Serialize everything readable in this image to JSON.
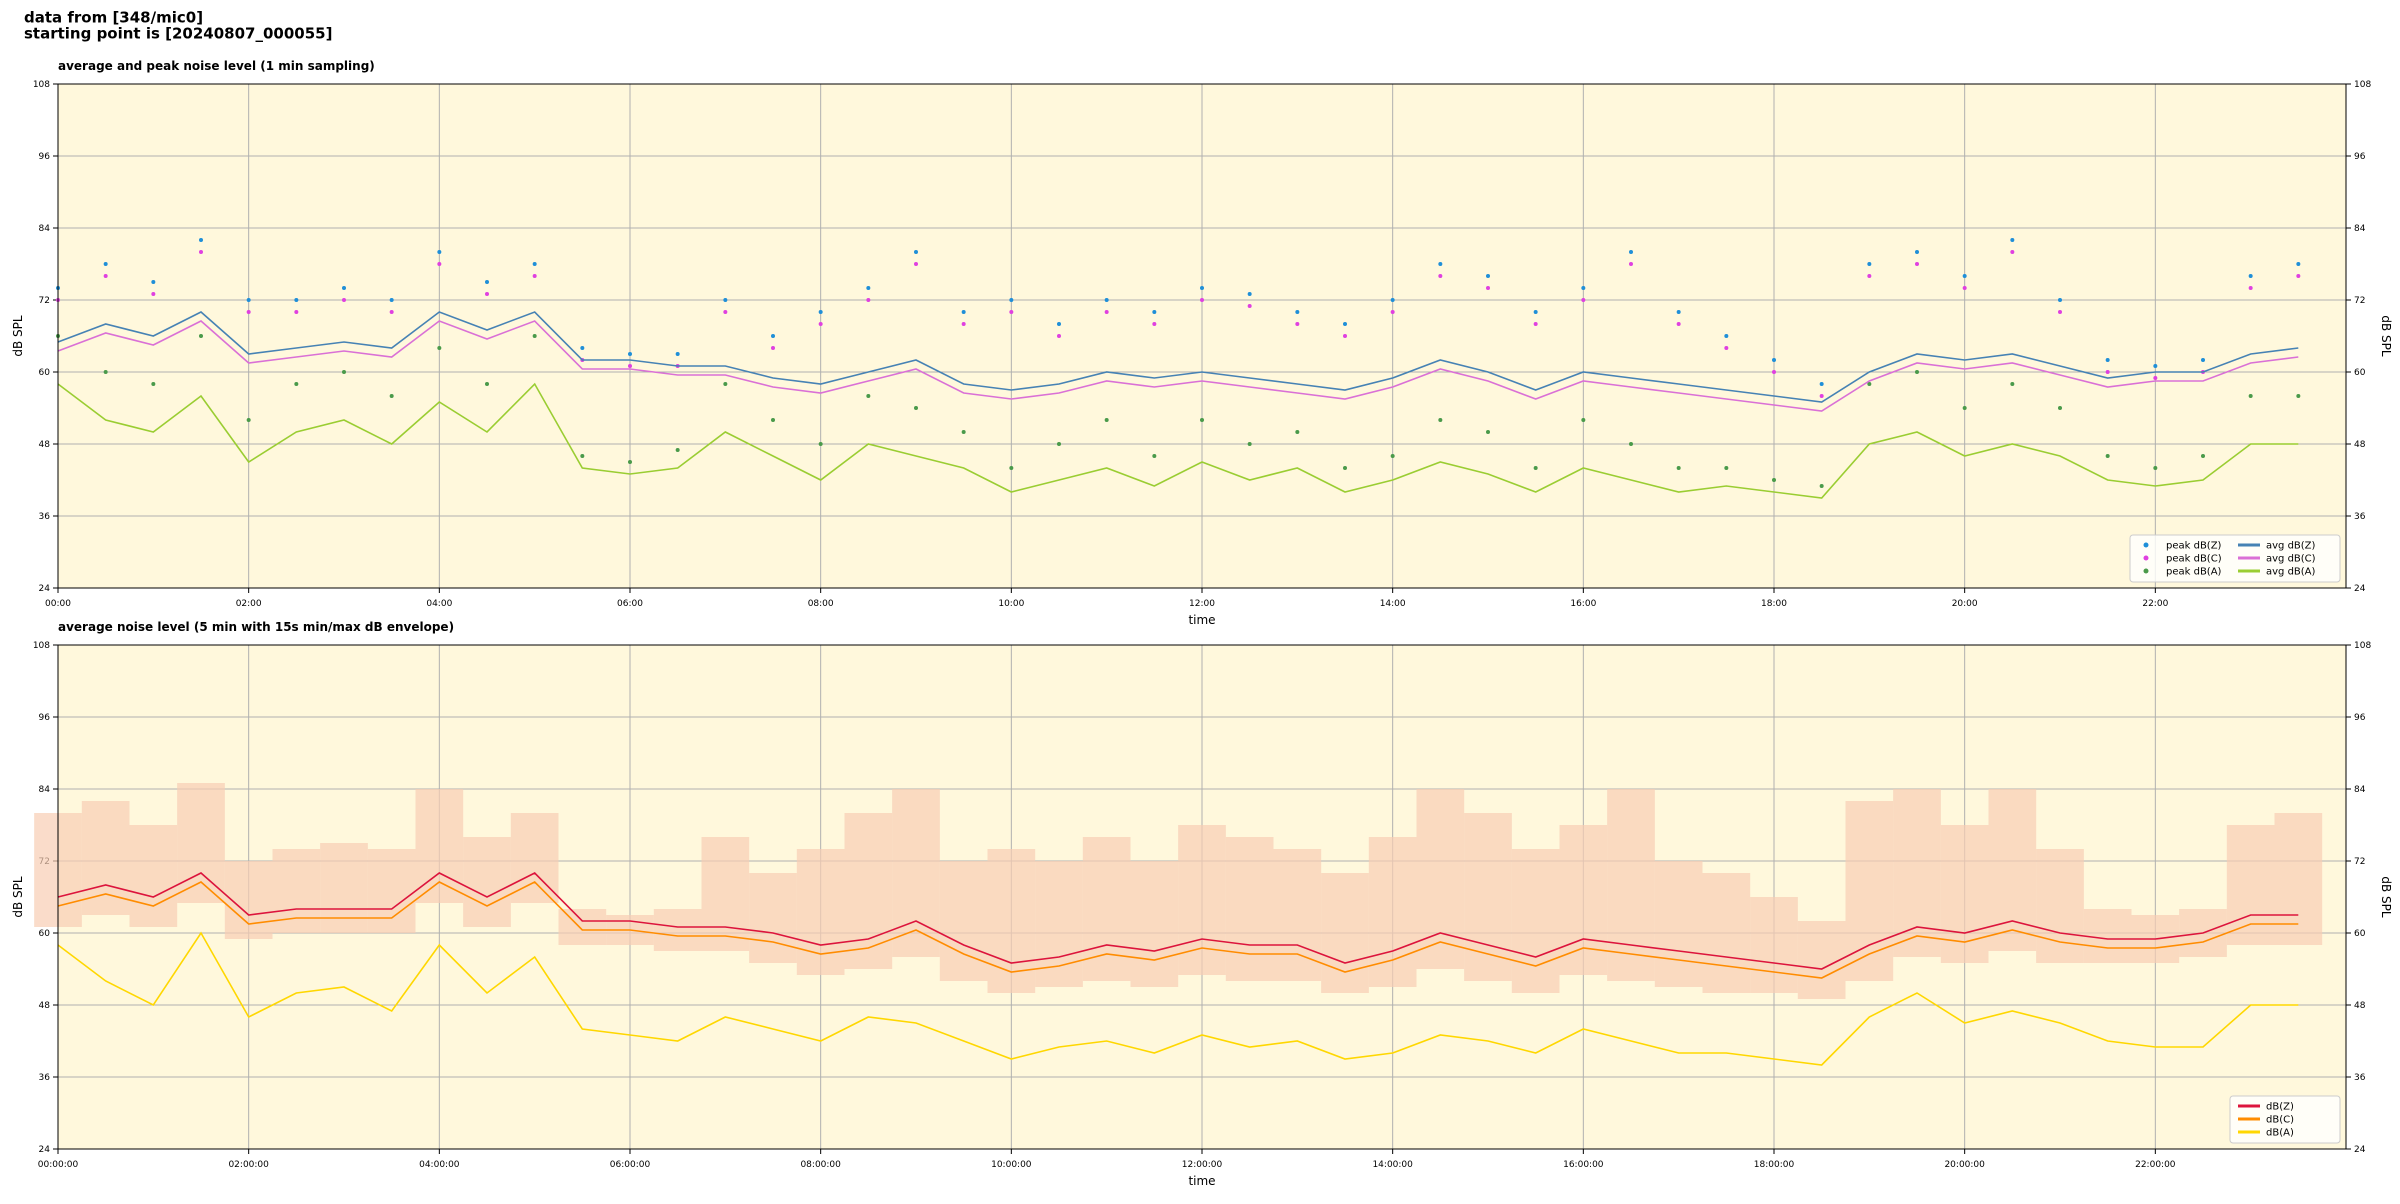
{
  "header": {
    "line1": "data from [348/mic0]",
    "line2": "starting point is [20240807_000055]"
  },
  "chart_data": [
    {
      "type": "line",
      "title": "average and peak noise level (1 min sampling)",
      "xlabel": "time",
      "ylabel": "dB SPL",
      "xlim": [
        0,
        1440
      ],
      "ylim": [
        24,
        108
      ],
      "yticks": [
        24,
        36,
        48,
        60,
        72,
        84,
        96,
        108
      ],
      "xticks": [
        {
          "value": 0,
          "label": "00:00"
        },
        {
          "value": 120,
          "label": "02:00"
        },
        {
          "value": 240,
          "label": "04:00"
        },
        {
          "value": 360,
          "label": "06:00"
        },
        {
          "value": 480,
          "label": "08:00"
        },
        {
          "value": 600,
          "label": "10:00"
        },
        {
          "value": 720,
          "label": "12:00"
        },
        {
          "value": 840,
          "label": "14:00"
        },
        {
          "value": 960,
          "label": "16:00"
        },
        {
          "value": 1080,
          "label": "18:00"
        },
        {
          "value": 1200,
          "label": "20:00"
        },
        {
          "value": 1320,
          "label": "22:00"
        }
      ],
      "grid": true,
      "legend": "lower right",
      "background": "#fff8dc",
      "x": [
        0,
        30,
        60,
        90,
        120,
        150,
        180,
        210,
        240,
        270,
        300,
        330,
        360,
        390,
        420,
        450,
        480,
        510,
        540,
        570,
        600,
        630,
        660,
        690,
        720,
        750,
        780,
        810,
        840,
        870,
        900,
        930,
        960,
        990,
        1020,
        1050,
        1080,
        1110,
        1140,
        1170,
        1200,
        1230,
        1260,
        1290,
        1320,
        1350,
        1380,
        1410
      ],
      "series": [
        {
          "name": "peak dB(Z)",
          "kind": "scatter",
          "color": "#1f8fd8",
          "values": [
            74,
            78,
            75,
            82,
            72,
            72,
            74,
            72,
            80,
            75,
            78,
            64,
            63,
            63,
            72,
            66,
            70,
            74,
            80,
            70,
            72,
            68,
            72,
            70,
            74,
            73,
            70,
            68,
            72,
            78,
            76,
            70,
            74,
            80,
            70,
            66,
            62,
            58,
            78,
            80,
            76,
            82,
            72,
            62,
            61,
            62,
            76,
            78
          ]
        },
        {
          "name": "peak dB(C)",
          "kind": "scatter",
          "color": "#e040e0",
          "values": [
            72,
            76,
            73,
            80,
            70,
            70,
            72,
            70,
            78,
            73,
            76,
            62,
            61,
            61,
            70,
            64,
            68,
            72,
            78,
            68,
            70,
            66,
            70,
            68,
            72,
            71,
            68,
            66,
            70,
            76,
            74,
            68,
            72,
            78,
            68,
            64,
            60,
            56,
            76,
            78,
            74,
            80,
            70,
            60,
            59,
            60,
            74,
            76
          ]
        },
        {
          "name": "peak dB(A)",
          "kind": "scatter",
          "color": "#4a9a4a",
          "values": [
            66,
            60,
            58,
            66,
            52,
            58,
            60,
            56,
            64,
            58,
            66,
            46,
            45,
            47,
            58,
            52,
            48,
            56,
            54,
            50,
            44,
            48,
            52,
            46,
            52,
            48,
            50,
            44,
            46,
            52,
            50,
            44,
            52,
            48,
            44,
            44,
            42,
            41,
            58,
            60,
            54,
            58,
            54,
            46,
            44,
            46,
            56,
            56
          ]
        },
        {
          "name": "avg dB(Z)",
          "kind": "line",
          "color": "#4682b4",
          "values": [
            65,
            68,
            66,
            70,
            63,
            64,
            65,
            64,
            70,
            67,
            70,
            62,
            62,
            61,
            61,
            59,
            58,
            60,
            62,
            58,
            57,
            58,
            60,
            59,
            60,
            59,
            58,
            57,
            59,
            62,
            60,
            57,
            60,
            59,
            58,
            57,
            56,
            55,
            60,
            63,
            62,
            63,
            61,
            59,
            60,
            60,
            63,
            64
          ]
        },
        {
          "name": "avg dB(C)",
          "kind": "line",
          "color": "#da70d6",
          "values": [
            63.5,
            66.5,
            64.5,
            68.5,
            61.5,
            62.5,
            63.5,
            62.5,
            68.5,
            65.5,
            68.5,
            60.5,
            60.5,
            59.5,
            59.5,
            57.5,
            56.5,
            58.5,
            60.5,
            56.5,
            55.5,
            56.5,
            58.5,
            57.5,
            58.5,
            57.5,
            56.5,
            55.5,
            57.5,
            60.5,
            58.5,
            55.5,
            58.5,
            57.5,
            56.5,
            55.5,
            54.5,
            53.5,
            58.5,
            61.5,
            60.5,
            61.5,
            59.5,
            57.5,
            58.5,
            58.5,
            61.5,
            62.5
          ]
        },
        {
          "name": "avg dB(A)",
          "kind": "line",
          "color": "#9acd32",
          "values": [
            58,
            52,
            50,
            56,
            45,
            50,
            52,
            48,
            55,
            50,
            58,
            44,
            43,
            44,
            50,
            46,
            42,
            48,
            46,
            44,
            40,
            42,
            44,
            41,
            45,
            42,
            44,
            40,
            42,
            45,
            43,
            40,
            44,
            42,
            40,
            41,
            40,
            39,
            48,
            50,
            46,
            48,
            46,
            42,
            41,
            42,
            48,
            48
          ]
        }
      ]
    },
    {
      "type": "line",
      "title": "average noise level (5 min with 15s min/max dB envelope)",
      "xlabel": "time",
      "ylabel": "dB SPL",
      "xlim": [
        0,
        1440
      ],
      "ylim": [
        24,
        108
      ],
      "yticks": [
        24,
        36,
        48,
        60,
        72,
        84,
        96,
        108
      ],
      "xticks": [
        {
          "value": 0,
          "label": "00:00:00"
        },
        {
          "value": 120,
          "label": "02:00:00"
        },
        {
          "value": 240,
          "label": "04:00:00"
        },
        {
          "value": 360,
          "label": "06:00:00"
        },
        {
          "value": 480,
          "label": "08:00:00"
        },
        {
          "value": 600,
          "label": "10:00:00"
        },
        {
          "value": 720,
          "label": "12:00:00"
        },
        {
          "value": 840,
          "label": "14:00:00"
        },
        {
          "value": 960,
          "label": "16:00:00"
        },
        {
          "value": 1080,
          "label": "18:00:00"
        },
        {
          "value": 1200,
          "label": "20:00:00"
        },
        {
          "value": 1320,
          "label": "22:00:00"
        }
      ],
      "grid": true,
      "legend": "lower right",
      "background": "#fff8dc",
      "x": [
        0,
        30,
        60,
        90,
        120,
        150,
        180,
        210,
        240,
        270,
        300,
        330,
        360,
        390,
        420,
        450,
        480,
        510,
        540,
        570,
        600,
        630,
        660,
        690,
        720,
        750,
        780,
        810,
        840,
        870,
        900,
        930,
        960,
        990,
        1020,
        1050,
        1080,
        1110,
        1140,
        1170,
        1200,
        1230,
        1260,
        1290,
        1320,
        1350,
        1380,
        1410
      ],
      "envelope": {
        "color": "#f8cdb4",
        "low": [
          61,
          63,
          61,
          65,
          59,
          60,
          60,
          60,
          65,
          61,
          65,
          58,
          58,
          57,
          57,
          55,
          53,
          54,
          56,
          52,
          50,
          51,
          52,
          51,
          53,
          52,
          52,
          50,
          51,
          54,
          52,
          50,
          53,
          52,
          51,
          50,
          50,
          49,
          52,
          56,
          55,
          57,
          55,
          55,
          55,
          56,
          58,
          58
        ],
        "high": [
          80,
          82,
          78,
          85,
          72,
          74,
          75,
          74,
          84,
          76,
          80,
          64,
          63,
          64,
          76,
          70,
          74,
          80,
          84,
          72,
          74,
          72,
          76,
          72,
          78,
          76,
          74,
          70,
          76,
          84,
          80,
          74,
          78,
          84,
          72,
          70,
          66,
          62,
          82,
          84,
          78,
          84,
          74,
          64,
          63,
          64,
          78,
          80
        ]
      },
      "series": [
        {
          "name": "dB(Z)",
          "kind": "line",
          "color": "#dc143c",
          "values": [
            66,
            68,
            66,
            70,
            63,
            64,
            64,
            64,
            70,
            66,
            70,
            62,
            62,
            61,
            61,
            60,
            58,
            59,
            62,
            58,
            55,
            56,
            58,
            57,
            59,
            58,
            58,
            55,
            57,
            60,
            58,
            56,
            59,
            58,
            57,
            56,
            55,
            54,
            58,
            61,
            60,
            62,
            60,
            59,
            59,
            60,
            63,
            63
          ]
        },
        {
          "name": "dB(C)",
          "kind": "line",
          "color": "#ff8c00",
          "values": [
            64.5,
            66.5,
            64.5,
            68.5,
            61.5,
            62.5,
            62.5,
            62.5,
            68.5,
            64.5,
            68.5,
            60.5,
            60.5,
            59.5,
            59.5,
            58.5,
            56.5,
            57.5,
            60.5,
            56.5,
            53.5,
            54.5,
            56.5,
            55.5,
            57.5,
            56.5,
            56.5,
            53.5,
            55.5,
            58.5,
            56.5,
            54.5,
            57.5,
            56.5,
            55.5,
            54.5,
            53.5,
            52.5,
            56.5,
            59.5,
            58.5,
            60.5,
            58.5,
            57.5,
            57.5,
            58.5,
            61.5,
            61.5
          ]
        },
        {
          "name": "dB(A)",
          "kind": "line",
          "color": "#ffd700",
          "values": [
            58,
            52,
            48,
            60,
            46,
            50,
            51,
            47,
            58,
            50,
            56,
            44,
            43,
            42,
            46,
            44,
            42,
            46,
            45,
            42,
            39,
            41,
            42,
            40,
            43,
            41,
            42,
            39,
            40,
            43,
            42,
            40,
            44,
            42,
            40,
            40,
            39,
            38,
            46,
            50,
            45,
            47,
            45,
            42,
            41,
            41,
            48,
            48
          ]
        }
      ]
    }
  ]
}
